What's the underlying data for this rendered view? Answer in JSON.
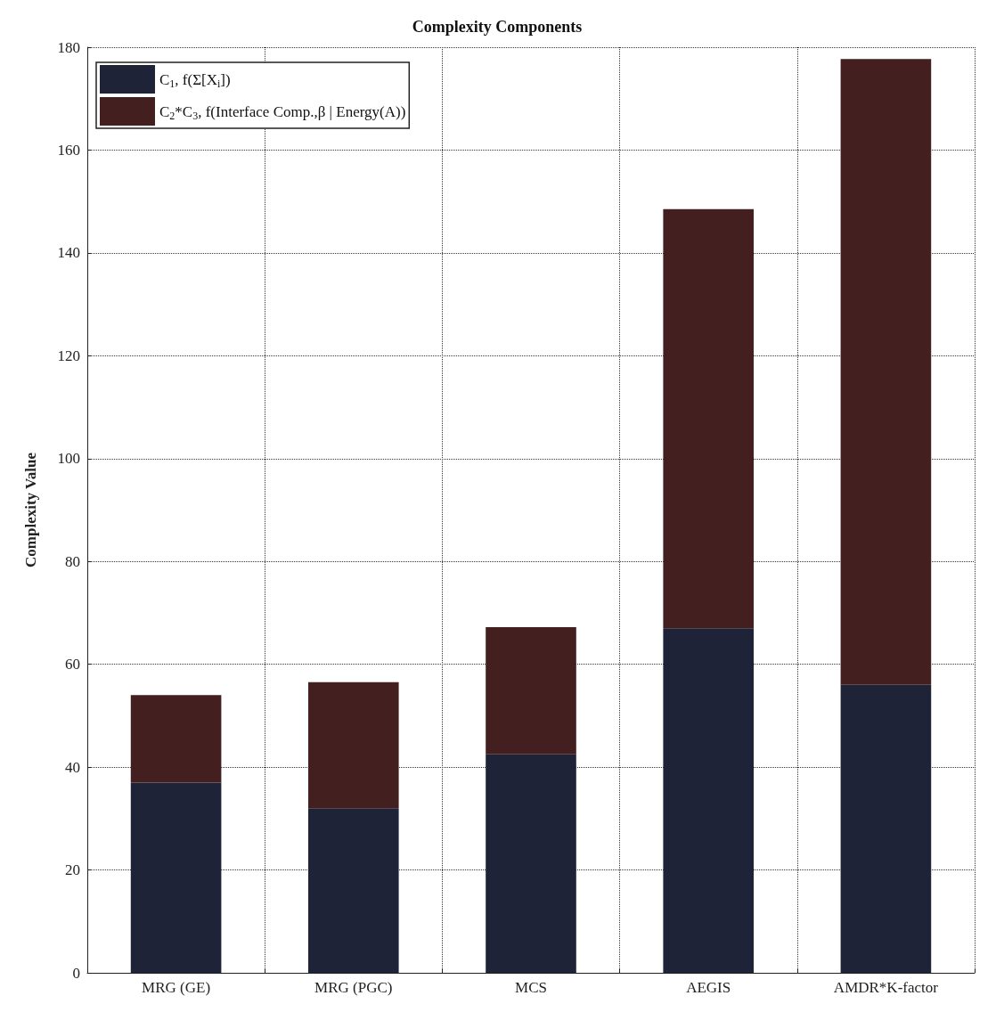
{
  "chart_data": {
    "type": "bar",
    "stacked": true,
    "title": "Complexity Components",
    "ylabel": "Complexity Value",
    "categories": [
      "MRG (GE)",
      "MRG (PGC)",
      "MCS",
      "AEGIS",
      "AMDR*K-factor"
    ],
    "series": [
      {
        "name": "C$_{1}$, f(Σ[X$_{i}$])",
        "color": "#1e2338",
        "values": [
          37,
          32,
          42.5,
          67,
          56
        ]
      },
      {
        "name": "C$_{2}$*C$_{3}$, f(Interface Comp.,β | Energy(A))",
        "color": "#43201f",
        "values": [
          17,
          24.5,
          24.7,
          81.5,
          121.7
        ]
      }
    ],
    "ylim": [
      0,
      180
    ],
    "yticks": [
      0,
      20,
      40,
      60,
      80,
      100,
      120,
      140,
      160,
      180
    ],
    "grid": true,
    "legend": "top left"
  }
}
